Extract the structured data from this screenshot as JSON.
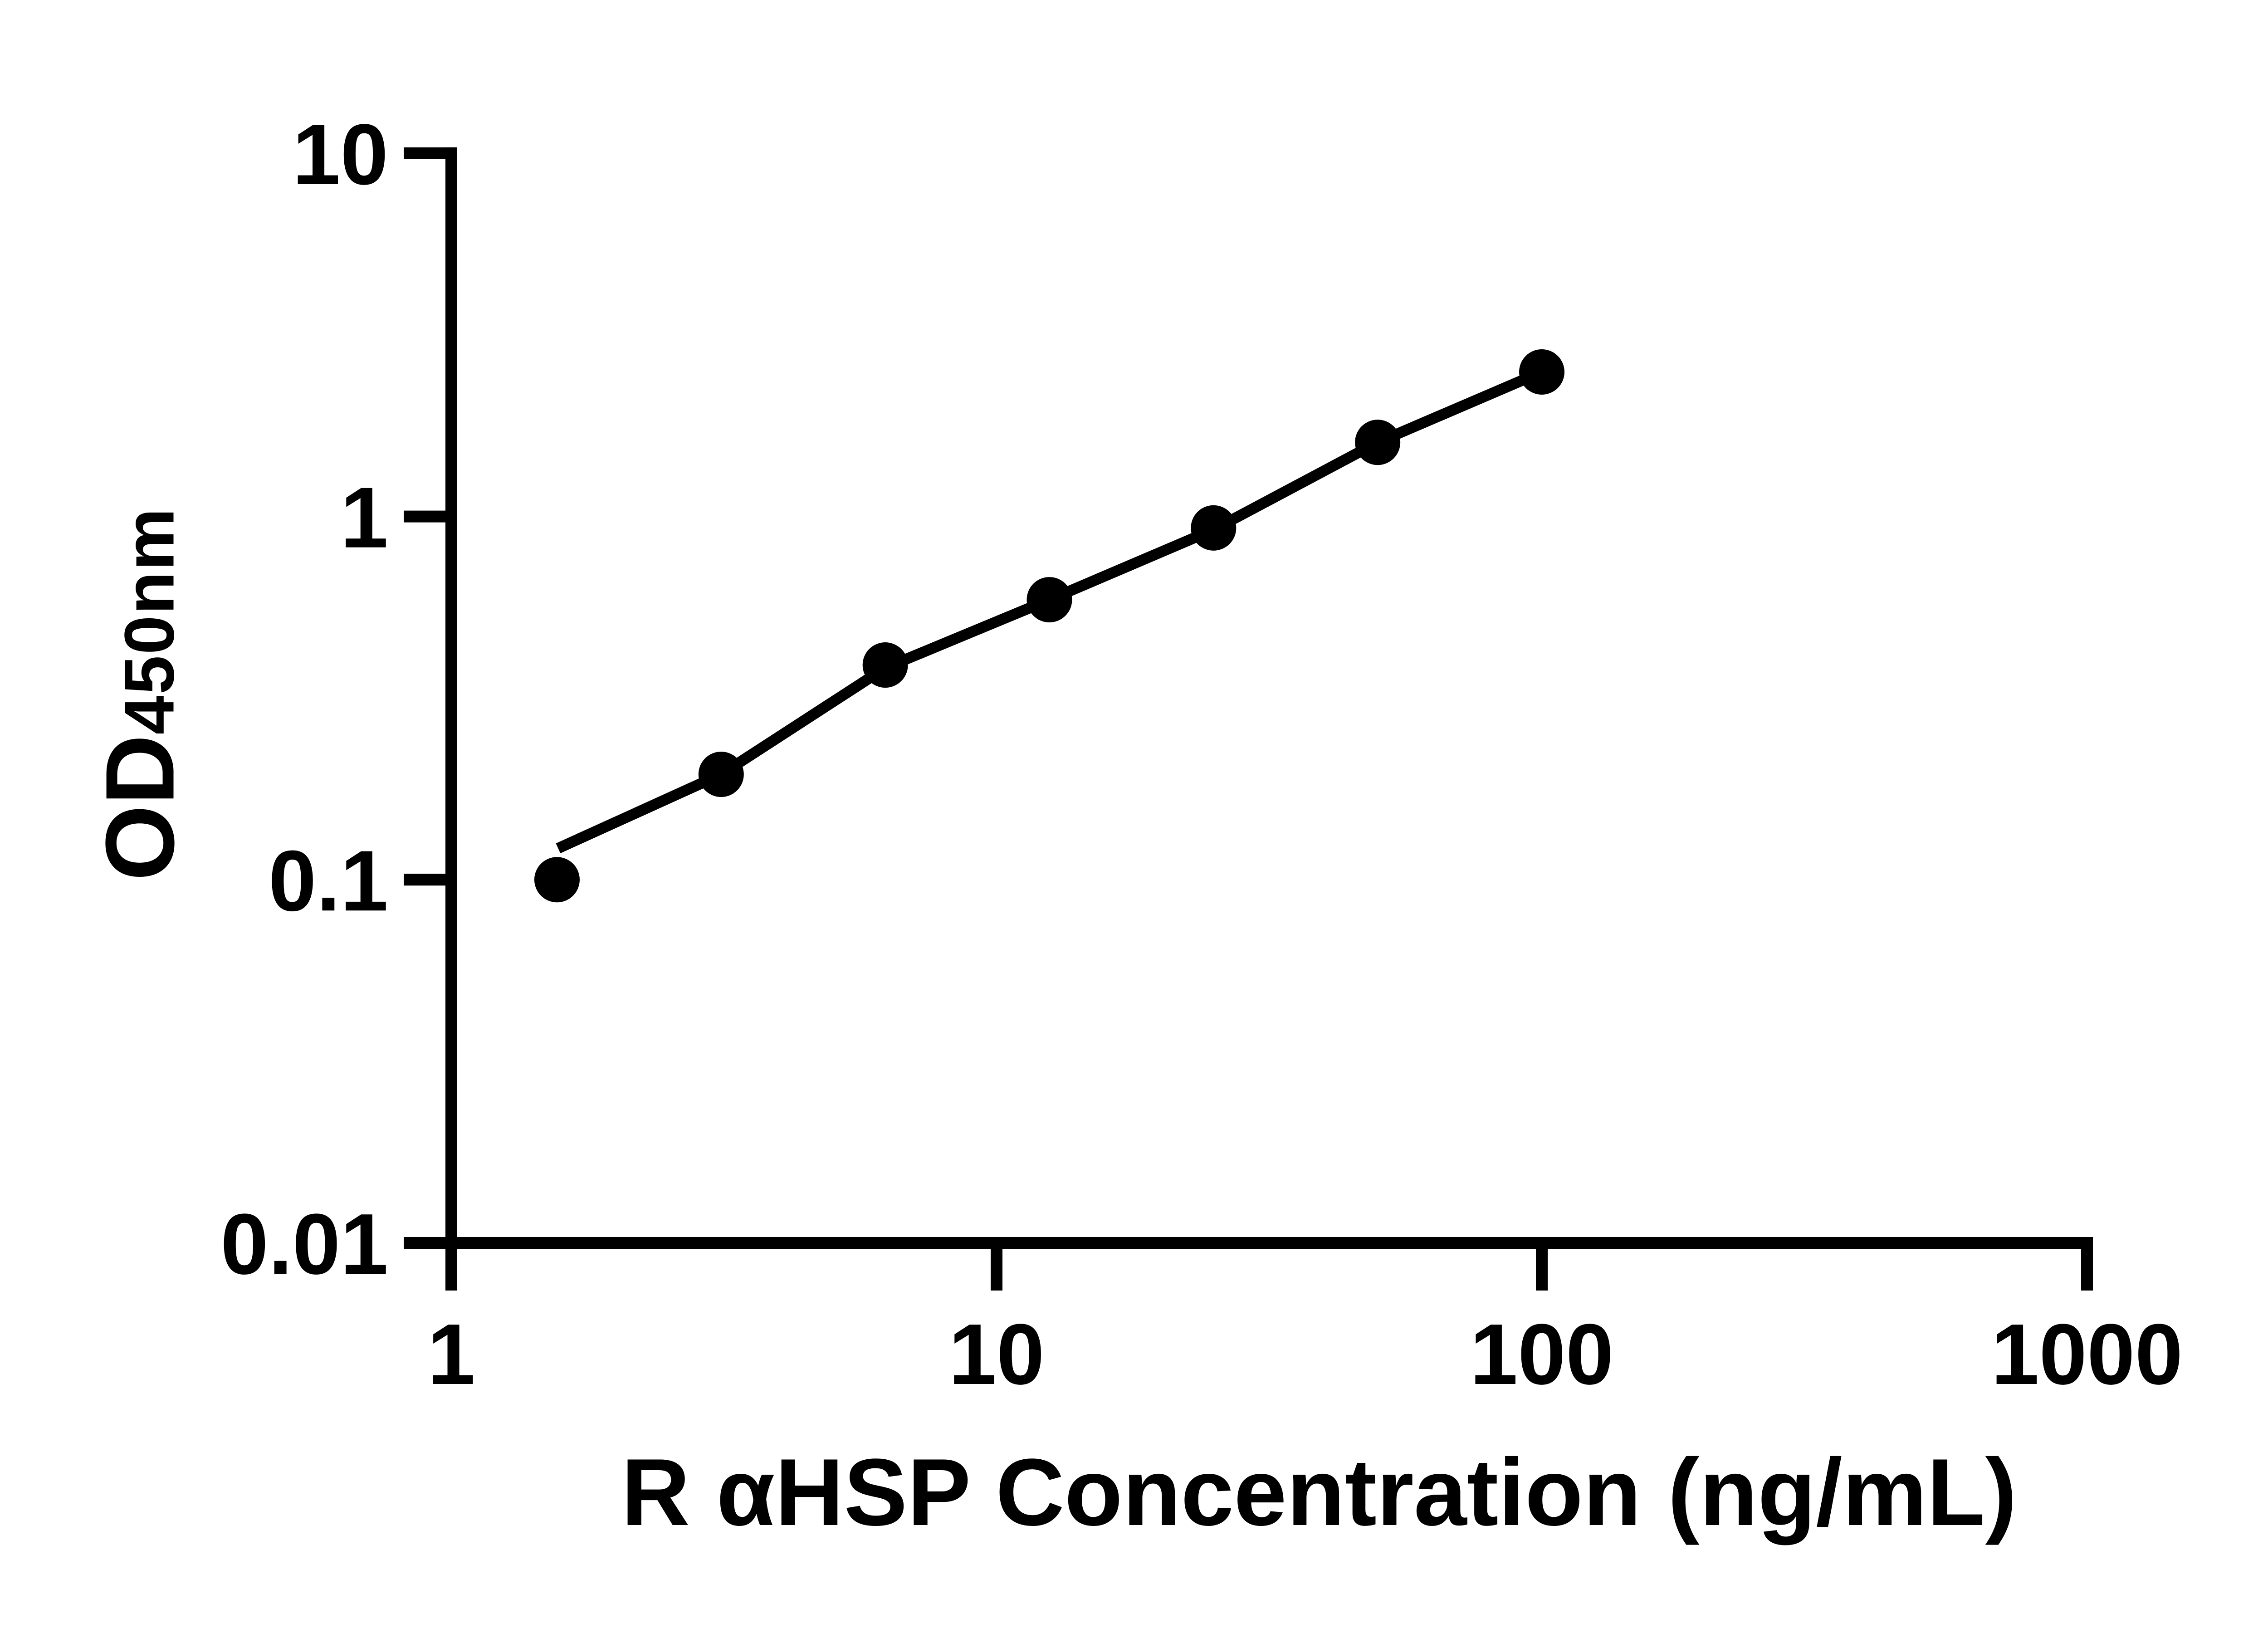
{
  "figure": {
    "background_color": "#ffffff",
    "ink_color": "#000000"
  },
  "chart_data": {
    "type": "scatter",
    "title": "",
    "xlabel": "R αHSP Concentration (ng/mL)",
    "ylabel_main": "OD",
    "ylabel_sub": "450nm",
    "x_scale": "log",
    "y_scale": "log",
    "xlim": [
      1,
      1000
    ],
    "ylim": [
      0.01,
      10
    ],
    "x_ticks": [
      1,
      10,
      100,
      1000
    ],
    "x_tick_labels": [
      "1",
      "10",
      "100",
      "1000"
    ],
    "y_ticks": [
      10,
      1,
      0.1,
      0.01
    ],
    "y_tick_labels": [
      "10",
      "1",
      "0.1",
      "0.01"
    ],
    "grid": false,
    "legend": "none",
    "marker_color": "#000000",
    "line_color": "#000000",
    "series": [
      {
        "name": "standard-curve-points",
        "marker": "circle",
        "x": [
          1.5625,
          3.125,
          6.25,
          12.5,
          25,
          50,
          100
        ],
        "y": [
          0.1,
          0.195,
          0.39,
          0.59,
          0.93,
          1.6,
          2.5
        ]
      }
    ],
    "trend_line": {
      "name": "fitted-curve",
      "x": [
        1.57,
        3.125,
        6.25,
        12.5,
        25,
        50,
        100
      ],
      "y": [
        0.122,
        0.195,
        0.383,
        0.59,
        0.92,
        1.6,
        2.5
      ]
    }
  }
}
